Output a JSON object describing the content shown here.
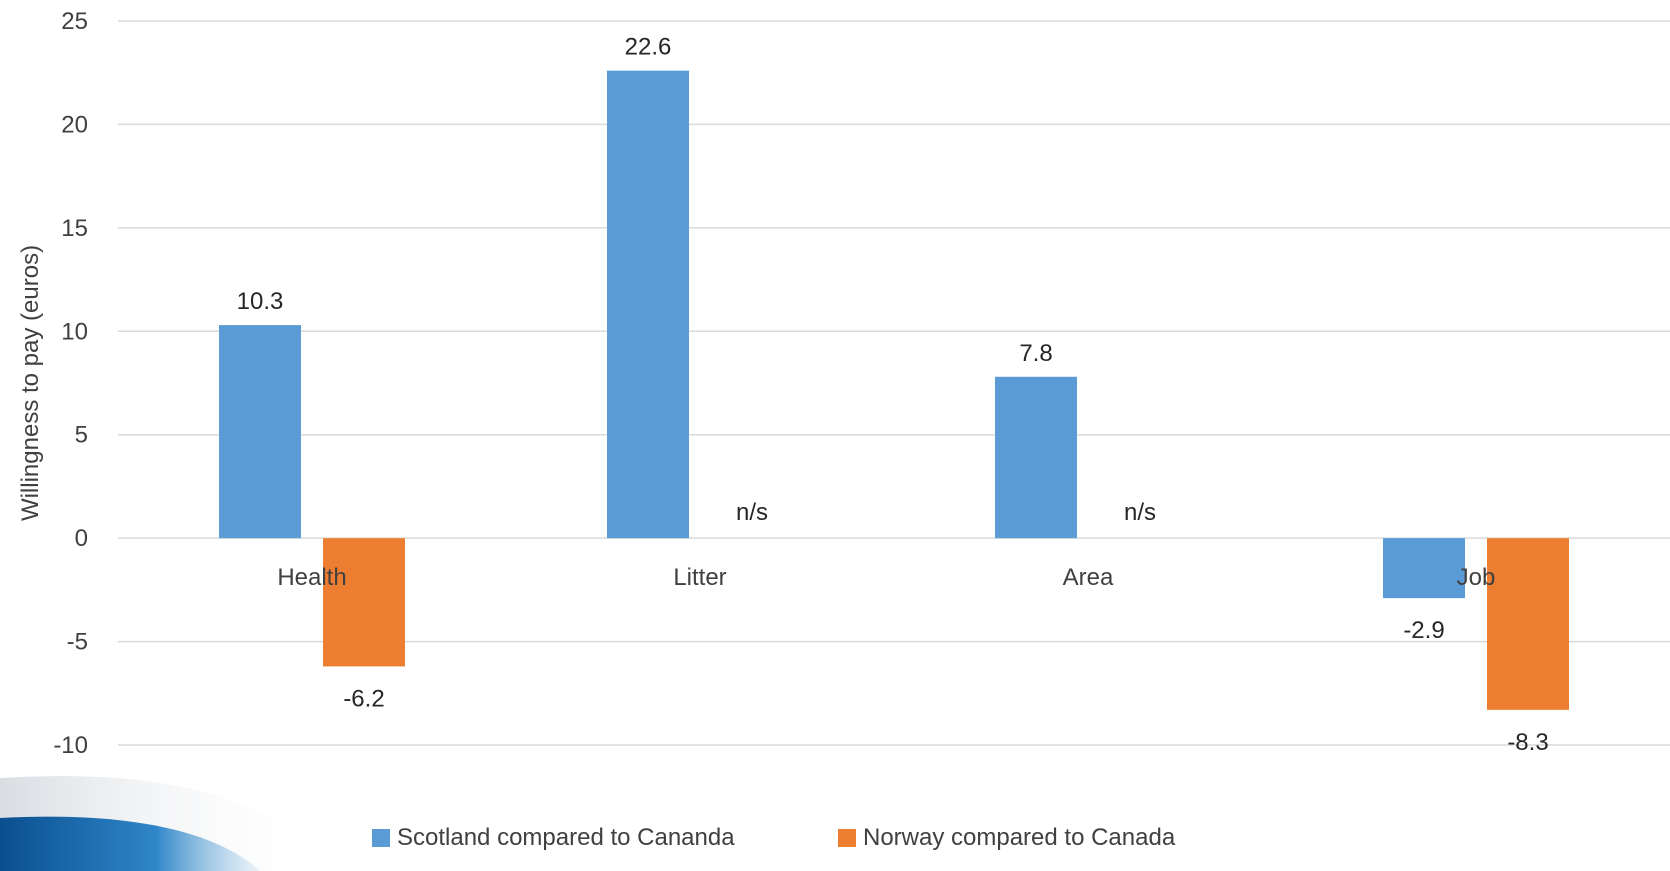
{
  "chart_data": {
    "type": "bar",
    "title": "",
    "xlabel": "",
    "ylabel": "Willingness to pay (euros)",
    "ylim": [
      -10,
      25
    ],
    "yticks": [
      25,
      20,
      15,
      10,
      5,
      0,
      -5,
      -10
    ],
    "grid": true,
    "legend_position": "bottom",
    "categories": [
      "Health",
      "Litter",
      "Area",
      "Job"
    ],
    "series": [
      {
        "name": "Scotland compared to Cananda",
        "color": "#5B9BD5",
        "values": [
          10.3,
          22.6,
          7.8,
          -2.9
        ],
        "labels": [
          "10.3",
          "22.6",
          "7.8",
          "-2.9"
        ]
      },
      {
        "name": "Norway compared to Canada",
        "color": "#ED7D31",
        "values": [
          -6.2,
          null,
          null,
          -8.3
        ],
        "labels": [
          "-6.2",
          "n/s",
          "n/s",
          "-8.3"
        ]
      }
    ]
  }
}
